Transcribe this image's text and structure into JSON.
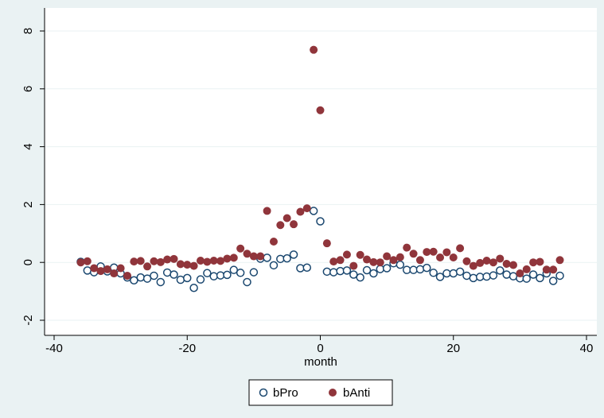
{
  "chart_data": {
    "type": "scatter",
    "xlabel": "month",
    "ylabel": "",
    "xlim": [
      -40,
      40
    ],
    "ylim": [
      -2,
      8
    ],
    "xticks": [
      -40,
      -20,
      0,
      20,
      40
    ],
    "yticks": [
      -2,
      0,
      2,
      4,
      6,
      8
    ],
    "grid": "horizontal",
    "legend_position": "bottom",
    "x": [
      -36,
      -35,
      -34,
      -33,
      -32,
      -31,
      -30,
      -29,
      -28,
      -27,
      -26,
      -25,
      -24,
      -23,
      -22,
      -21,
      -20,
      -19,
      -18,
      -17,
      -16,
      -15,
      -14,
      -13,
      -12,
      -11,
      -10,
      -9,
      -8,
      -7,
      -6,
      -5,
      -4,
      -3,
      -2,
      -1,
      0,
      1,
      2,
      3,
      4,
      5,
      6,
      7,
      8,
      9,
      10,
      11,
      12,
      13,
      14,
      15,
      16,
      17,
      18,
      19,
      20,
      21,
      22,
      23,
      24,
      25,
      26,
      27,
      28,
      29,
      30,
      31,
      32,
      33,
      34,
      35,
      36
    ],
    "series": [
      {
        "name": "bPro",
        "marker": "hollow-circle",
        "color": "#1a476f",
        "values": [
          0.02,
          -0.28,
          -0.34,
          -0.14,
          -0.31,
          -0.18,
          -0.38,
          -0.52,
          -0.62,
          -0.52,
          -0.56,
          -0.46,
          -0.68,
          -0.35,
          -0.42,
          -0.6,
          -0.54,
          -0.88,
          -0.59,
          -0.37,
          -0.48,
          -0.45,
          -0.43,
          -0.26,
          -0.36,
          -0.68,
          -0.34,
          0.13,
          0.16,
          -0.1,
          0.12,
          0.14,
          0.27,
          -0.2,
          -0.18,
          1.78,
          1.42,
          -0.32,
          -0.34,
          -0.3,
          -0.28,
          -0.42,
          -0.52,
          -0.27,
          -0.38,
          -0.23,
          -0.2,
          -0.03,
          -0.08,
          -0.26,
          -0.26,
          -0.24,
          -0.19,
          -0.36,
          -0.5,
          -0.38,
          -0.38,
          -0.32,
          -0.46,
          -0.54,
          -0.5,
          -0.49,
          -0.45,
          -0.28,
          -0.42,
          -0.48,
          -0.55,
          -0.56,
          -0.42,
          -0.54,
          -0.38,
          -0.64,
          -0.46
        ]
      },
      {
        "name": "bAnti",
        "marker": "filled-circle",
        "color": "#90353b",
        "values": [
          0.0,
          0.04,
          -0.2,
          -0.3,
          -0.24,
          -0.38,
          -0.2,
          -0.46,
          0.03,
          0.05,
          -0.14,
          0.04,
          0.01,
          0.1,
          0.12,
          -0.06,
          -0.08,
          -0.12,
          0.06,
          0.02,
          0.06,
          0.05,
          0.13,
          0.16,
          0.48,
          0.3,
          0.21,
          0.21,
          1.78,
          0.72,
          1.29,
          1.53,
          1.32,
          1.75,
          1.87,
          7.35,
          5.26,
          0.66,
          0.03,
          0.08,
          0.27,
          -0.12,
          0.26,
          0.1,
          0.01,
          0.0,
          0.21,
          0.08,
          0.18,
          0.51,
          0.3,
          0.08,
          0.36,
          0.37,
          0.17,
          0.35,
          0.17,
          0.49,
          0.04,
          -0.12,
          -0.02,
          0.06,
          0.0,
          0.13,
          -0.05,
          -0.09,
          -0.38,
          -0.24,
          0.0,
          0.02,
          -0.25,
          -0.25,
          0.08
        ]
      }
    ]
  }
}
